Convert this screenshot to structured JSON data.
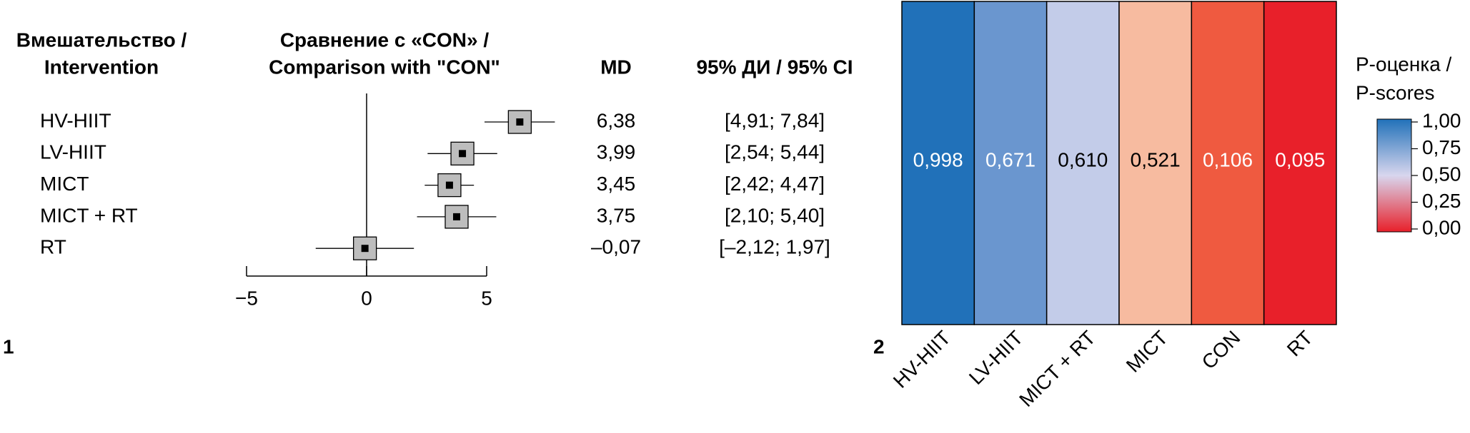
{
  "chart_data": [
    {
      "type": "forest",
      "panel_label": "1",
      "headers": {
        "intervention": [
          "Вмешательство /",
          "Intervention"
        ],
        "comparison": [
          "Сравнение с «CON» /",
          "Comparison with \"CON\""
        ],
        "md": "MD",
        "ci": "95% ДИ / 95% CI"
      },
      "categories": [
        "HV-HIIT",
        "LV-HIIT",
        "MICT",
        "MICT + RT",
        "RT"
      ],
      "values": [
        6.38,
        3.99,
        3.45,
        3.75,
        -0.07
      ],
      "value_labels": [
        "6,38",
        "3,99",
        "3,45",
        "3,75",
        "–0,07"
      ],
      "lower": [
        4.91,
        2.54,
        2.42,
        2.1,
        -2.12
      ],
      "upper": [
        7.84,
        5.44,
        4.47,
        5.4,
        1.97
      ],
      "ci_labels": [
        "[4,91; 7,84]",
        "[2,54; 5,44]",
        "[2,42; 4,47]",
        "[2,10; 5,40]",
        "[–2,12; 1,97]"
      ],
      "xlim": [
        -5,
        5
      ],
      "xticks": [
        {
          "value": -5,
          "label": "−5"
        },
        0,
        5
      ],
      "box_color": "#bdbdbd"
    },
    {
      "type": "heatmap",
      "panel_label": "2",
      "categories": [
        "HV-HIIT",
        "LV-HIIT",
        "MICT + RT",
        "MICT",
        "CON",
        "RT"
      ],
      "values": [
        0.998,
        0.671,
        0.61,
        0.521,
        0.106,
        0.095
      ],
      "value_labels": [
        "0,998",
        "0,671",
        "0,610",
        "0,521",
        "0,106",
        "0,095"
      ],
      "colors": [
        "#2171b9",
        "#6a96cf",
        "#c3cce9",
        "#f7bba0",
        "#ef5a40",
        "#e8202a"
      ],
      "legend_title": [
        "P-оценка /",
        "P-scores"
      ],
      "clim": [
        0,
        1
      ],
      "colorscale": [
        "#e8202a",
        "#d8d6ee",
        "#2171b9"
      ],
      "cticks": [
        {
          "value": 1,
          "label": "1,00"
        },
        {
          "value": 0.75,
          "label": "0,75"
        },
        {
          "value": 0.5,
          "label": "0,50"
        },
        {
          "value": 0.25,
          "label": "0,25"
        },
        {
          "value": 0,
          "label": "0,00"
        }
      ]
    }
  ]
}
